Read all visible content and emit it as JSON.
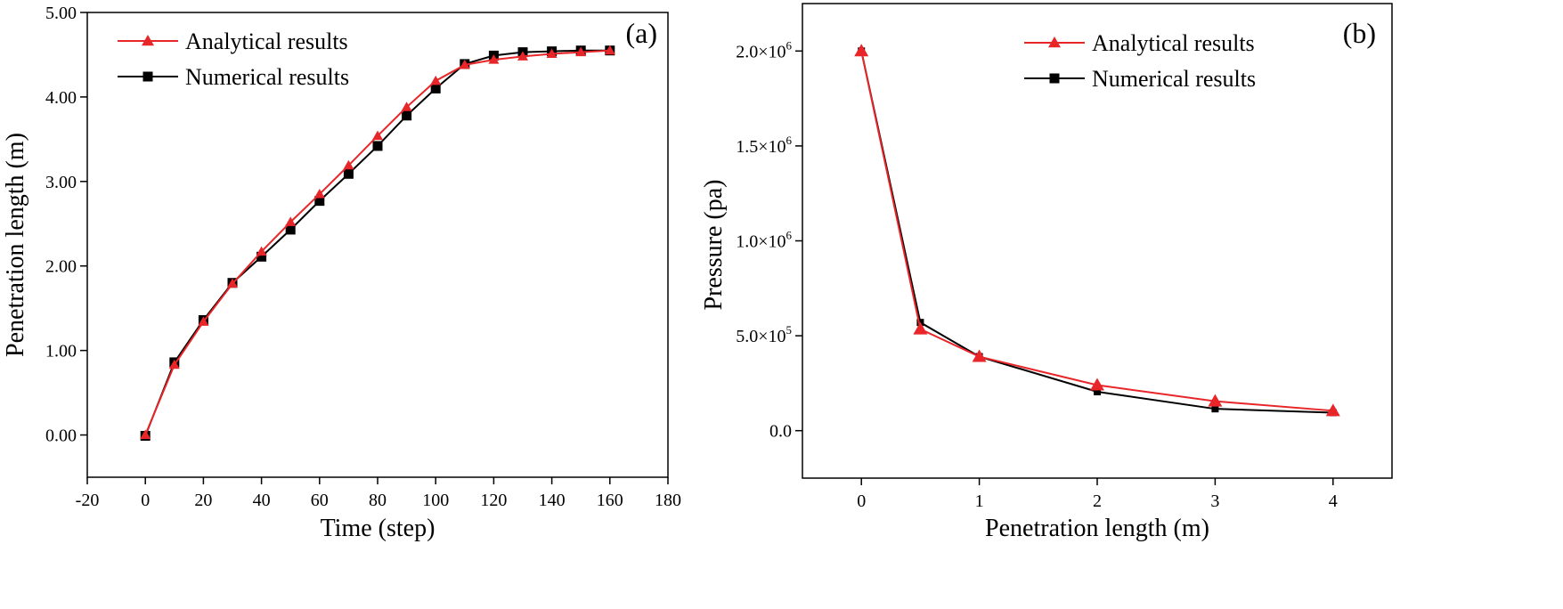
{
  "chart_data": [
    {
      "type": "line",
      "panel_label": "(a)",
      "title": "",
      "xlabel": "Time (step)",
      "ylabel": "Penetration length (m)",
      "xlim": [
        -20,
        180
      ],
      "ylim": [
        -0.5,
        5.0
      ],
      "xticks": [
        -20,
        0,
        20,
        40,
        60,
        80,
        100,
        120,
        140,
        160,
        180
      ],
      "xtick_labels": [
        "-20",
        "0",
        "20",
        "40",
        "60",
        "80",
        "100",
        "120",
        "140",
        "160",
        "180"
      ],
      "yticks": [
        0,
        1,
        2,
        3,
        4,
        5
      ],
      "ytick_labels": [
        "0.00",
        "1.00",
        "2.00",
        "3.00",
        "4.00",
        "5.00"
      ],
      "legend_position": "top-left",
      "series": [
        {
          "name": "Analytical results",
          "color": "#e8262a",
          "marker": "triangle",
          "x": [
            0,
            10,
            20,
            30,
            40,
            50,
            60,
            70,
            80,
            90,
            100,
            110,
            120,
            130,
            140,
            150,
            160
          ],
          "y": [
            0.0,
            0.83,
            1.34,
            1.79,
            2.17,
            2.52,
            2.85,
            3.19,
            3.54,
            3.88,
            4.19,
            4.38,
            4.44,
            4.48,
            4.51,
            4.53,
            4.55
          ]
        },
        {
          "name": "Numerical results",
          "color": "#000000",
          "marker": "square",
          "x": [
            0,
            10,
            20,
            30,
            40,
            50,
            60,
            70,
            80,
            90,
            100,
            110,
            120,
            130,
            140,
            150,
            160
          ],
          "y": [
            -0.01,
            0.86,
            1.36,
            1.8,
            2.11,
            2.43,
            2.77,
            3.09,
            3.42,
            3.78,
            4.1,
            4.39,
            4.49,
            4.53,
            4.54,
            4.55,
            4.55
          ]
        }
      ]
    },
    {
      "type": "line",
      "panel_label": "(b)",
      "title": "",
      "xlabel": "Penetration length (m)",
      "ylabel": "Pressure  (pa)",
      "xlim": [
        -0.5,
        4.5
      ],
      "ylim": [
        -250000,
        2250000
      ],
      "xticks": [
        0,
        1,
        2,
        3,
        4
      ],
      "xtick_labels": [
        "0",
        "1",
        "2",
        "3",
        "4"
      ],
      "yticks": [
        0,
        500000,
        1000000,
        1500000,
        2000000
      ],
      "ytick_labels": [
        {
          "mantissa": "0.0",
          "exp": ""
        },
        {
          "mantissa": "5.0×10",
          "exp": "5"
        },
        {
          "mantissa": "1.0×10",
          "exp": "6"
        },
        {
          "mantissa": "1.5×10",
          "exp": "6"
        },
        {
          "mantissa": "2.0×10",
          "exp": "6"
        }
      ],
      "legend_position": "top-right",
      "series": [
        {
          "name": "Analytical results",
          "color": "#e8262a",
          "marker": "triangle",
          "x": [
            0,
            0.5,
            1,
            2,
            3,
            4
          ],
          "y": [
            2000000,
            535000,
            390000,
            240000,
            155000,
            105000
          ]
        },
        {
          "name": "Numerical results",
          "color": "#000000",
          "marker": "square",
          "x": [
            0,
            0.5,
            1,
            2,
            3,
            4
          ],
          "y": [
            2000000,
            570000,
            390000,
            205000,
            115000,
            95000
          ]
        }
      ]
    }
  ]
}
